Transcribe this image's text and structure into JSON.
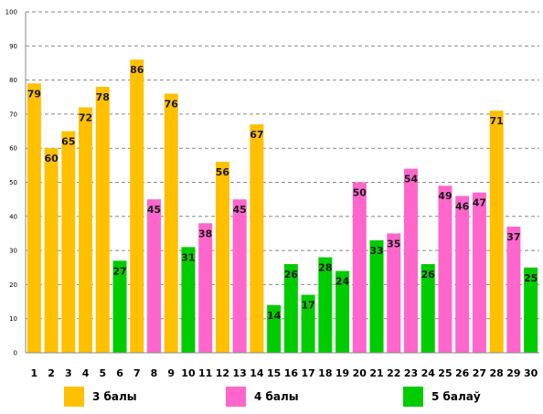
{
  "chart_data": {
    "type": "bar",
    "categories": [
      "1",
      "2",
      "3",
      "4",
      "5",
      "6",
      "7",
      "8",
      "9",
      "10",
      "11",
      "12",
      "13",
      "14",
      "15",
      "16",
      "17",
      "18",
      "19",
      "20",
      "21",
      "22",
      "23",
      "24",
      "25",
      "26",
      "27",
      "28",
      "29",
      "30"
    ],
    "values": [
      79,
      60,
      65,
      72,
      78,
      27,
      86,
      45,
      76,
      31,
      38,
      56,
      45,
      67,
      14,
      26,
      17,
      28,
      24,
      50,
      33,
      35,
      54,
      26,
      49,
      46,
      47,
      71,
      37,
      25
    ],
    "groups": [
      "3",
      "3",
      "3",
      "3",
      "3",
      "5",
      "3",
      "4",
      "3",
      "5",
      "4",
      "3",
      "4",
      "3",
      "5",
      "5",
      "5",
      "5",
      "5",
      "4",
      "5",
      "4",
      "4",
      "5",
      "4",
      "4",
      "4",
      "3",
      "4",
      "5"
    ],
    "ylim": [
      0,
      100
    ],
    "yticks": [
      0,
      10,
      20,
      30,
      40,
      50,
      60,
      70,
      80,
      90,
      100
    ],
    "grid": true,
    "legend_position": "bottom",
    "legend": [
      {
        "key": "3",
        "label": "3 балы",
        "color": "#FFC000"
      },
      {
        "key": "4",
        "label": "4 балы",
        "color": "#FF66CC"
      },
      {
        "key": "5",
        "label": "5 балаў",
        "color": "#00CC00"
      }
    ]
  }
}
